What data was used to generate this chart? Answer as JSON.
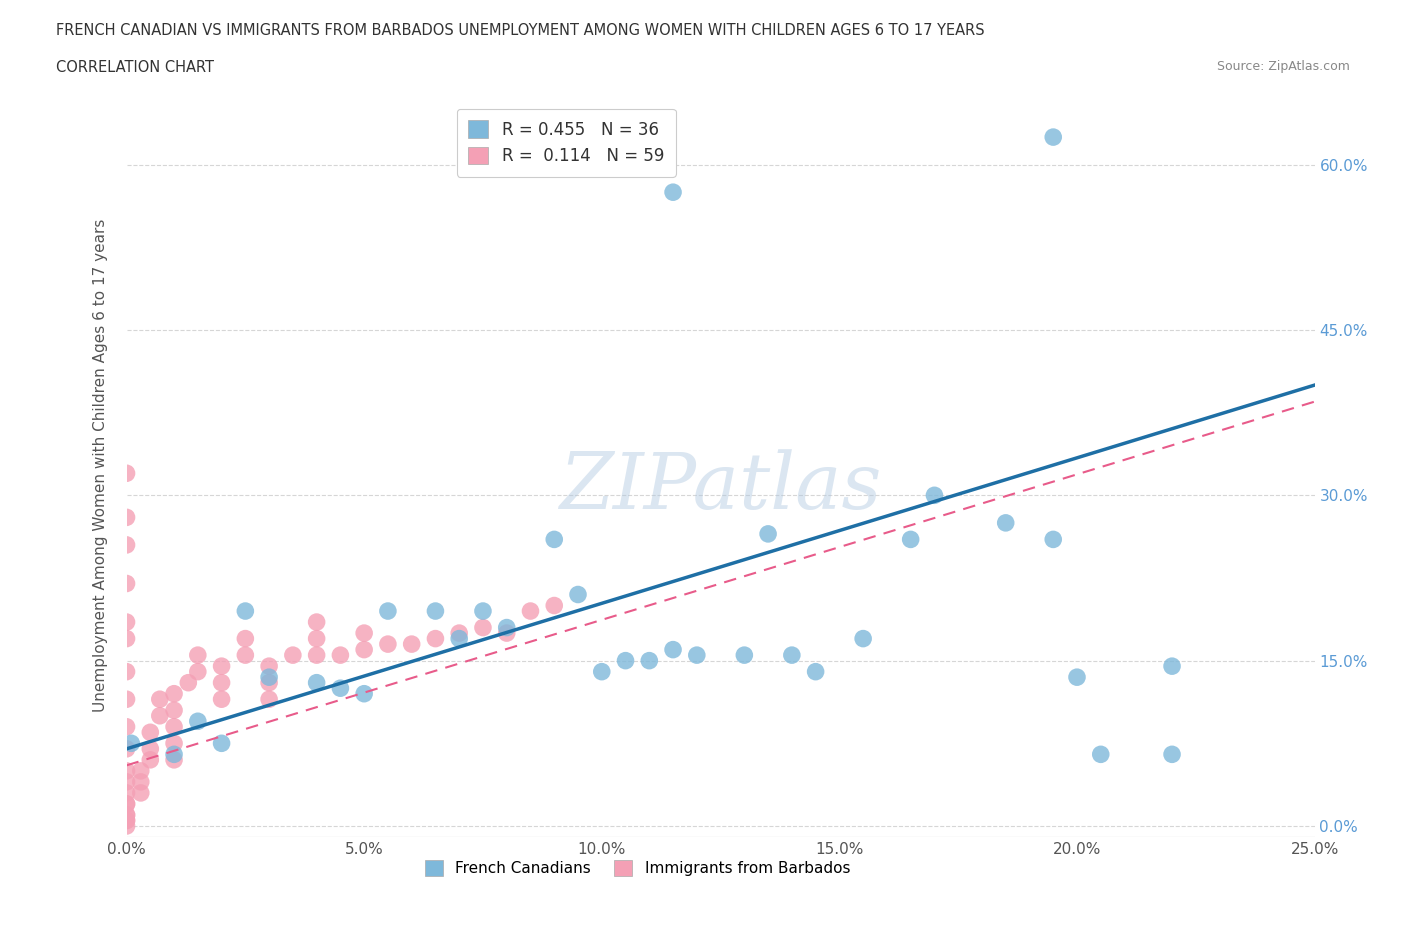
{
  "title_line1": "FRENCH CANADIAN VS IMMIGRANTS FROM BARBADOS UNEMPLOYMENT AMONG WOMEN WITH CHILDREN AGES 6 TO 17 YEARS",
  "title_line2": "CORRELATION CHART",
  "source": "Source: ZipAtlas.com",
  "ylabel": "Unemployment Among Women with Children Ages 6 to 17 years",
  "xlabel_ticks": [
    "0.0%",
    "5.0%",
    "10.0%",
    "15.0%",
    "20.0%",
    "25.0%"
  ],
  "ylabel_ticks": [
    "0.0%",
    "15.0%",
    "30.0%",
    "45.0%",
    "60.0%"
  ],
  "xlim": [
    0.0,
    0.25
  ],
  "ylim": [
    -0.01,
    0.665
  ],
  "blue_R": 0.455,
  "blue_N": 36,
  "pink_R": 0.114,
  "pink_N": 59,
  "blue_color": "#7EB8DA",
  "pink_color": "#F4A0B5",
  "blue_line_color": "#1E6FA5",
  "pink_line_color": "#E85B8A",
  "watermark": "ZIPatlas",
  "background_color": "#ffffff",
  "grid_color": "#cccccc",
  "blue_x": [
    0.001,
    0.01,
    0.015,
    0.02,
    0.025,
    0.03,
    0.04,
    0.045,
    0.05,
    0.055,
    0.065,
    0.07,
    0.075,
    0.08,
    0.09,
    0.095,
    0.1,
    0.105,
    0.11,
    0.115,
    0.12,
    0.13,
    0.135,
    0.14,
    0.145,
    0.155,
    0.165,
    0.17,
    0.185,
    0.195,
    0.2,
    0.205,
    0.22,
    0.115,
    0.195,
    0.22
  ],
  "blue_y": [
    0.075,
    0.065,
    0.095,
    0.075,
    0.195,
    0.135,
    0.13,
    0.125,
    0.12,
    0.195,
    0.195,
    0.17,
    0.195,
    0.18,
    0.26,
    0.21,
    0.14,
    0.15,
    0.15,
    0.16,
    0.155,
    0.155,
    0.265,
    0.155,
    0.14,
    0.17,
    0.26,
    0.3,
    0.275,
    0.26,
    0.135,
    0.065,
    0.065,
    0.575,
    0.625,
    0.145
  ],
  "pink_x": [
    0.0,
    0.0,
    0.0,
    0.0,
    0.0,
    0.0,
    0.0,
    0.0,
    0.0,
    0.0,
    0.0,
    0.0,
    0.0,
    0.0,
    0.0,
    0.0,
    0.0,
    0.0,
    0.0,
    0.0,
    0.003,
    0.003,
    0.003,
    0.005,
    0.005,
    0.005,
    0.007,
    0.007,
    0.01,
    0.01,
    0.01,
    0.01,
    0.01,
    0.013,
    0.015,
    0.015,
    0.02,
    0.02,
    0.02,
    0.025,
    0.025,
    0.03,
    0.03,
    0.03,
    0.035,
    0.04,
    0.04,
    0.04,
    0.045,
    0.05,
    0.05,
    0.055,
    0.06,
    0.065,
    0.07,
    0.075,
    0.08,
    0.085,
    0.09
  ],
  "pink_y": [
    0.32,
    0.28,
    0.255,
    0.22,
    0.185,
    0.17,
    0.14,
    0.115,
    0.09,
    0.07,
    0.05,
    0.04,
    0.03,
    0.02,
    0.01,
    0.005,
    0.0,
    0.005,
    0.01,
    0.02,
    0.03,
    0.04,
    0.05,
    0.06,
    0.07,
    0.085,
    0.1,
    0.115,
    0.06,
    0.075,
    0.09,
    0.105,
    0.12,
    0.13,
    0.14,
    0.155,
    0.115,
    0.13,
    0.145,
    0.155,
    0.17,
    0.115,
    0.13,
    0.145,
    0.155,
    0.155,
    0.17,
    0.185,
    0.155,
    0.16,
    0.175,
    0.165,
    0.165,
    0.17,
    0.175,
    0.18,
    0.175,
    0.195,
    0.2
  ]
}
